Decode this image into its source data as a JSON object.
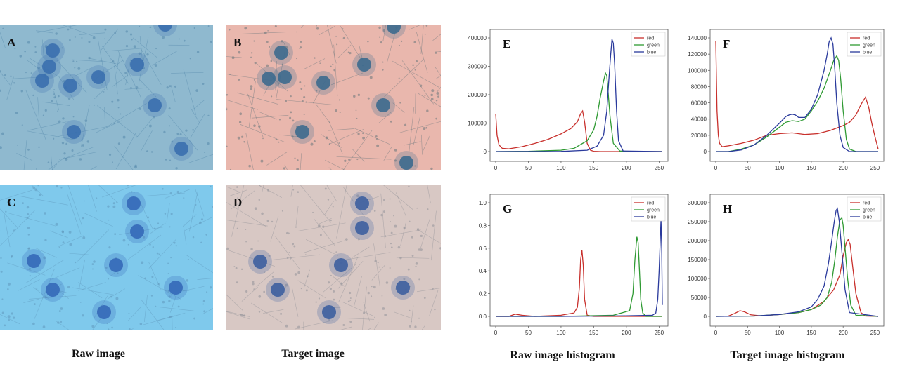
{
  "images": {
    "A": {
      "label": "A",
      "bg": "#8fb9cf"
    },
    "B": {
      "label": "B",
      "bg": "#e9b7ad"
    },
    "C": {
      "label": "C",
      "bg": "#7fc9ec"
    },
    "D": {
      "label": "D",
      "bg": "#d8c8c4"
    }
  },
  "captions": {
    "raw_image": "Raw image",
    "target_image": "Target image",
    "raw_hist": "Raw image histogram",
    "target_hist": "Target image histogram"
  },
  "legend": [
    "red",
    "green",
    "blue"
  ],
  "colors": {
    "red": "#c8302c",
    "green": "#2f9a33",
    "blue": "#2a3a9c"
  },
  "chart_data": [
    {
      "panel": "E",
      "type": "line",
      "xlim": [
        0,
        255
      ],
      "ylim": [
        0,
        420000
      ],
      "xticks": [
        "0",
        "50",
        "100",
        "150",
        "200",
        "250"
      ],
      "yticks": [
        "0",
        "100000",
        "200000",
        "300000",
        "400000"
      ],
      "series": [
        {
          "name": "red",
          "x": [
            0,
            2,
            5,
            10,
            20,
            40,
            60,
            80,
            100,
            115,
            125,
            130,
            133,
            136,
            140,
            145,
            150,
            160,
            255
          ],
          "y": [
            140000,
            60000,
            25000,
            12000,
            10000,
            18000,
            30000,
            45000,
            65000,
            85000,
            110000,
            140000,
            150000,
            110000,
            30000,
            5000,
            1000,
            0,
            0
          ]
        },
        {
          "name": "green",
          "x": [
            0,
            50,
            100,
            120,
            140,
            150,
            155,
            160,
            165,
            168,
            170,
            172,
            175,
            180,
            190,
            200,
            255
          ],
          "y": [
            0,
            1000,
            5000,
            12000,
            40000,
            80000,
            130000,
            200000,
            260000,
            290000,
            280000,
            220000,
            130000,
            30000,
            2000,
            0,
            0
          ]
        },
        {
          "name": "blue",
          "x": [
            0,
            100,
            140,
            155,
            165,
            170,
            173,
            176,
            178,
            180,
            182,
            185,
            188,
            195,
            255
          ],
          "y": [
            0,
            500,
            5000,
            20000,
            60000,
            150000,
            260000,
            360000,
            415000,
            400000,
            320000,
            150000,
            40000,
            2000,
            0
          ]
        }
      ]
    },
    {
      "panel": "F",
      "type": "line",
      "xlim": [
        0,
        255
      ],
      "ylim": [
        0,
        140000
      ],
      "xticks": [
        "0",
        "50",
        "100",
        "150",
        "200",
        "250"
      ],
      "yticks": [
        "0",
        "20000",
        "40000",
        "60000",
        "80000",
        "100000",
        "120000",
        "140000"
      ],
      "series": [
        {
          "name": "red",
          "x": [
            0,
            2,
            4,
            6,
            10,
            20,
            40,
            60,
            80,
            100,
            120,
            140,
            160,
            180,
            200,
            210,
            220,
            228,
            235,
            240,
            245,
            250,
            255
          ],
          "y": [
            136000,
            50000,
            20000,
            10000,
            6000,
            7000,
            10000,
            14000,
            20000,
            22000,
            23000,
            21000,
            22000,
            26000,
            32000,
            36000,
            45000,
            58000,
            67000,
            55000,
            35000,
            18000,
            3000
          ]
        },
        {
          "name": "green",
          "x": [
            0,
            20,
            40,
            60,
            80,
            100,
            110,
            120,
            130,
            140,
            150,
            160,
            170,
            180,
            185,
            190,
            193,
            196,
            200,
            205,
            210,
            220,
            255
          ],
          "y": [
            0,
            0,
            3000,
            8000,
            18000,
            30000,
            36000,
            38000,
            37000,
            40000,
            50000,
            62000,
            78000,
            100000,
            112000,
            118000,
            112000,
            90000,
            50000,
            15000,
            3000,
            0,
            0
          ]
        },
        {
          "name": "blue",
          "x": [
            0,
            20,
            40,
            60,
            80,
            100,
            110,
            115,
            120,
            125,
            130,
            140,
            150,
            160,
            165,
            170,
            175,
            178,
            181,
            184,
            187,
            190,
            195,
            200,
            210,
            255
          ],
          "y": [
            0,
            0,
            2000,
            8000,
            20000,
            35000,
            43000,
            45000,
            46000,
            45000,
            42000,
            42000,
            52000,
            70000,
            85000,
            100000,
            120000,
            135000,
            140000,
            132000,
            100000,
            60000,
            20000,
            5000,
            0,
            0
          ]
        }
      ]
    },
    {
      "panel": "G",
      "type": "line",
      "xlim": [
        0,
        255
      ],
      "ylim": [
        0,
        1.0
      ],
      "xticks": [
        "0",
        "50",
        "100",
        "150",
        "200",
        "250"
      ],
      "yticks": [
        "0.0",
        "0.2",
        "0.4",
        "0.6",
        "0.8",
        "1.0"
      ],
      "series": [
        {
          "name": "red",
          "x": [
            0,
            20,
            30,
            40,
            60,
            100,
            120,
            125,
            128,
            130,
            132,
            134,
            136,
            140,
            150,
            255
          ],
          "y": [
            0,
            0,
            0.02,
            0.01,
            0.0,
            0.01,
            0.03,
            0.08,
            0.25,
            0.5,
            0.58,
            0.45,
            0.15,
            0.01,
            0,
            0
          ]
        },
        {
          "name": "green",
          "x": [
            0,
            100,
            180,
            205,
            210,
            213,
            216,
            218,
            220,
            222,
            225,
            230,
            255
          ],
          "y": [
            0,
            0,
            0.01,
            0.05,
            0.2,
            0.5,
            0.7,
            0.65,
            0.4,
            0.15,
            0.03,
            0,
            0
          ]
        },
        {
          "name": "blue",
          "x": [
            0,
            100,
            200,
            240,
            245,
            248,
            250,
            252,
            253,
            254,
            255
          ],
          "y": [
            0,
            0,
            0.005,
            0.01,
            0.03,
            0.15,
            0.4,
            0.7,
            0.85,
            0.6,
            0.1
          ]
        }
      ]
    },
    {
      "panel": "H",
      "type": "line",
      "xlim": [
        0,
        255
      ],
      "ylim": [
        0,
        300000
      ],
      "xticks": [
        "0",
        "50",
        "100",
        "150",
        "200",
        "250"
      ],
      "yticks": [
        "0",
        "50000",
        "100000",
        "150000",
        "200000",
        "250000",
        "300000"
      ],
      "series": [
        {
          "name": "red",
          "x": [
            0,
            20,
            30,
            38,
            45,
            55,
            70,
            100,
            130,
            150,
            170,
            185,
            195,
            200,
            205,
            208,
            211,
            215,
            220,
            228,
            235,
            255
          ],
          "y": [
            0,
            1000,
            8000,
            15000,
            12000,
            4000,
            1500,
            5000,
            10000,
            18000,
            40000,
            70000,
            110000,
            160000,
            195000,
            203000,
            190000,
            130000,
            60000,
            10000,
            1000,
            0
          ]
        },
        {
          "name": "green",
          "x": [
            0,
            60,
            100,
            130,
            150,
            165,
            175,
            182,
            187,
            191,
            195,
            198,
            200,
            203,
            207,
            212,
            220,
            255
          ],
          "y": [
            0,
            1000,
            5000,
            10000,
            18000,
            30000,
            50000,
            90000,
            150000,
            210000,
            255000,
            260000,
            240000,
            180000,
            100000,
            30000,
            3000,
            0
          ]
        },
        {
          "name": "blue",
          "x": [
            0,
            60,
            100,
            130,
            150,
            160,
            170,
            177,
            182,
            186,
            189,
            191,
            194,
            198,
            203,
            210,
            255
          ],
          "y": [
            0,
            1000,
            5000,
            12000,
            25000,
            45000,
            80000,
            140000,
            200000,
            250000,
            280000,
            285000,
            250000,
            170000,
            70000,
            10000,
            0
          ]
        }
      ]
    }
  ]
}
